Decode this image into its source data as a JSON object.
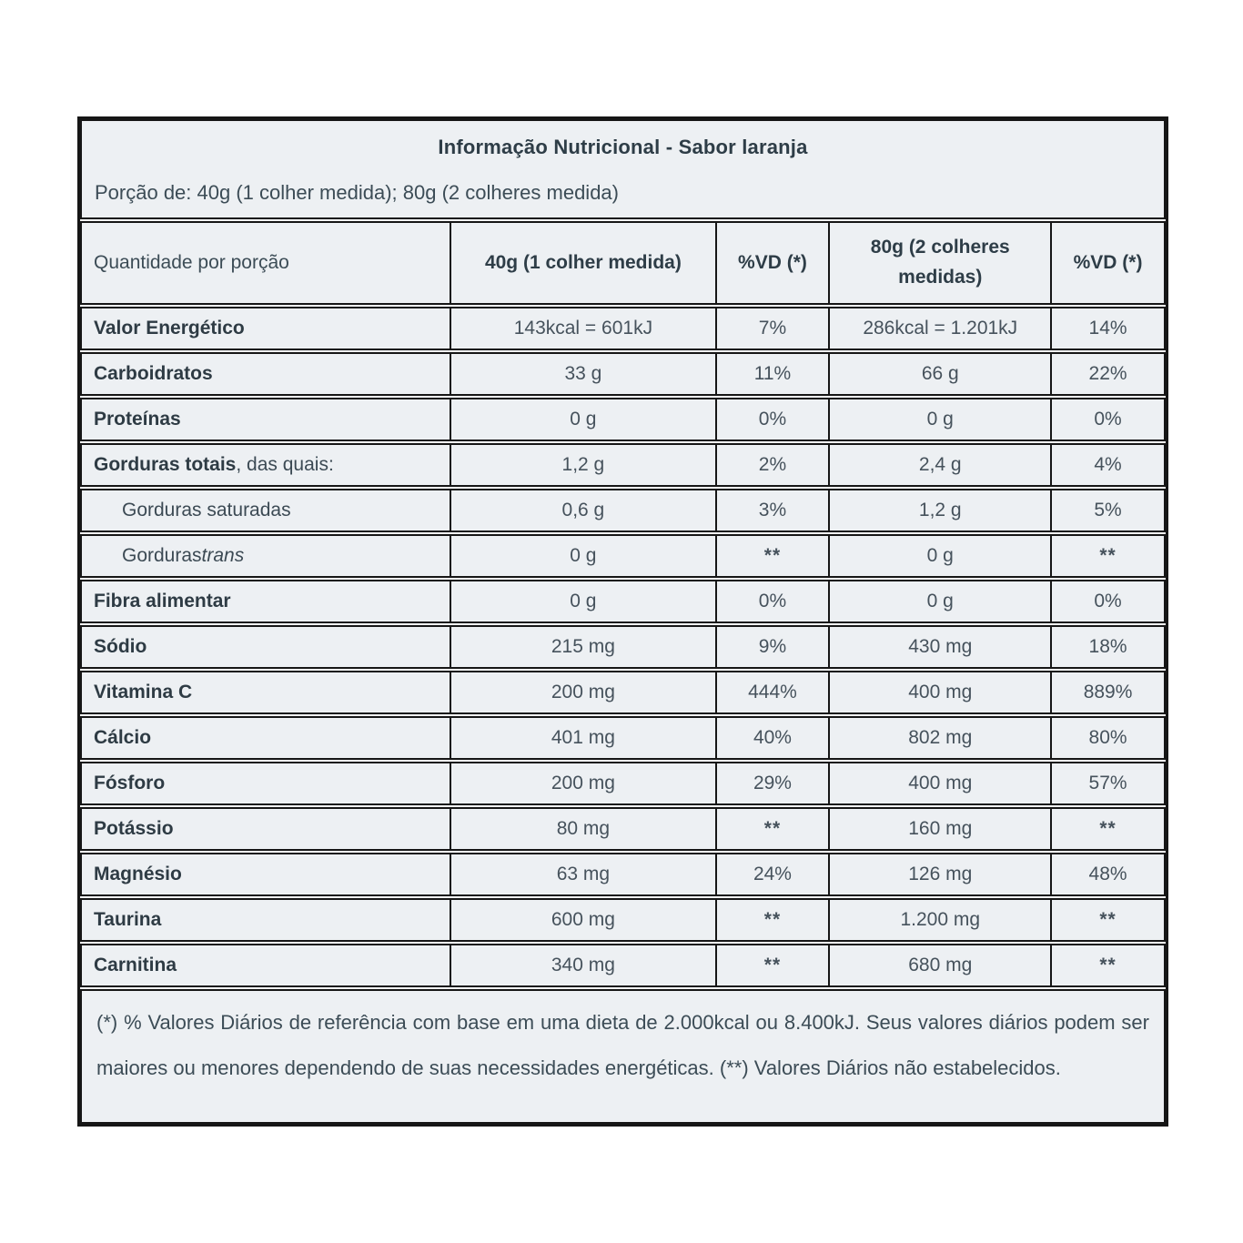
{
  "label": {
    "title": "Informação Nutricional - Sabor laranja",
    "serving_line": "Porção de: 40g (1 colher medida); 80g (2 colheres medida)",
    "header": {
      "col1": "Quantidade por porção",
      "col2": "40g (1 colher medida)",
      "col3": "%VD (*)",
      "col4": "80g (2 colheres medidas)",
      "col5": "%VD (*)"
    },
    "rows": [
      {
        "label_bold": "Valor Energético",
        "label_regular": "",
        "label_italic": "",
        "indent": false,
        "values": [
          "143kcal = 601kJ",
          "7%",
          "286kcal = 1.201kJ",
          "14%"
        ]
      },
      {
        "label_bold": "Carboidratos",
        "label_regular": "",
        "label_italic": "",
        "indent": false,
        "values": [
          "33 g",
          "11%",
          "66 g",
          "22%"
        ]
      },
      {
        "label_bold": "Proteínas",
        "label_regular": "",
        "label_italic": "",
        "indent": false,
        "values": [
          "0 g",
          "0%",
          "0 g",
          "0%"
        ]
      },
      {
        "label_bold": "Gorduras totais",
        "label_regular": ", das quais:",
        "label_italic": "",
        "indent": false,
        "values": [
          "1,2 g",
          "2%",
          "2,4 g",
          "4%"
        ]
      },
      {
        "label_bold": "",
        "label_regular": "Gorduras saturadas",
        "label_italic": "",
        "indent": true,
        "values": [
          "0,6 g",
          "3%",
          "1,2 g",
          "5%"
        ]
      },
      {
        "label_bold": "",
        "label_regular": "Gorduras ",
        "label_italic": "trans",
        "indent": true,
        "values": [
          "0 g",
          "**",
          "0 g",
          "**"
        ]
      },
      {
        "label_bold": "Fibra alimentar",
        "label_regular": "",
        "label_italic": "",
        "indent": false,
        "values": [
          "0 g",
          "0%",
          "0 g",
          "0%"
        ]
      },
      {
        "label_bold": "Sódio",
        "label_regular": "",
        "label_italic": "",
        "indent": false,
        "values": [
          "215 mg",
          "9%",
          "430 mg",
          "18%"
        ]
      },
      {
        "label_bold": "Vitamina C",
        "label_regular": "",
        "label_italic": "",
        "indent": false,
        "values": [
          "200 mg",
          "444%",
          "400 mg",
          "889%"
        ]
      },
      {
        "label_bold": "Cálcio",
        "label_regular": "",
        "label_italic": "",
        "indent": false,
        "values": [
          "401 mg",
          "40%",
          "802 mg",
          "80%"
        ]
      },
      {
        "label_bold": "Fósforo",
        "label_regular": "",
        "label_italic": "",
        "indent": false,
        "values": [
          "200 mg",
          "29%",
          "400 mg",
          "57%"
        ]
      },
      {
        "label_bold": "Potássio",
        "label_regular": "",
        "label_italic": "",
        "indent": false,
        "values": [
          "80 mg",
          "**",
          "160 mg",
          "**"
        ]
      },
      {
        "label_bold": "Magnésio",
        "label_regular": "",
        "label_italic": "",
        "indent": false,
        "values": [
          "63 mg",
          "24%",
          "126 mg",
          "48%"
        ]
      },
      {
        "label_bold": "Taurina",
        "label_regular": "",
        "label_italic": "",
        "indent": false,
        "values": [
          "600 mg",
          "**",
          "1.200 mg",
          "**"
        ]
      },
      {
        "label_bold": "Carnitina",
        "label_regular": "",
        "label_italic": "",
        "indent": false,
        "values": [
          "340 mg",
          "**",
          "680 mg",
          "**"
        ]
      }
    ],
    "footnote": "(*) % Valores Diários de referência com base em uma dieta de 2.000kcal ou 8.400kJ. Seus valores diários podem ser maiores ou menores dependendo de suas necessidades energéticas. (**) Valores Diários não estabelecidos.",
    "colors": {
      "cell_background": "#edf0f3",
      "border": "#161616",
      "label_text": "#2e3b44",
      "value_text": "#46525c"
    }
  }
}
